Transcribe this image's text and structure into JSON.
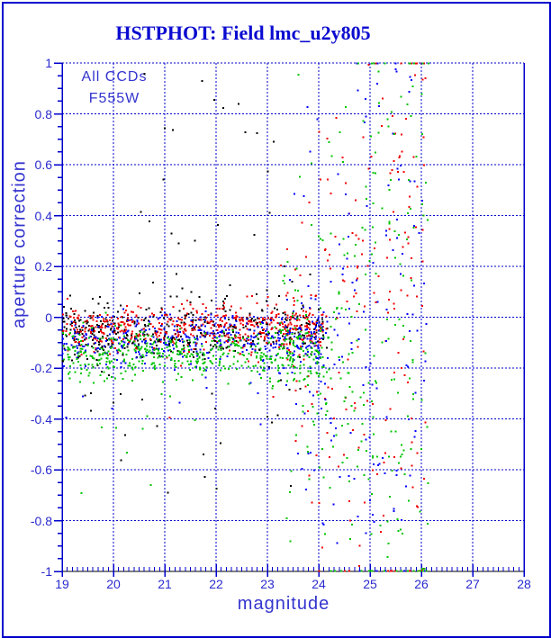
{
  "title": "HSTPHOT: Field lmc_u2y805",
  "legend": {
    "line1": "All CCDs",
    "line2": "F555W"
  },
  "chart_data": {
    "type": "scatter",
    "title": "HSTPHOT: Field lmc_u2y805",
    "annotations": [
      "All CCDs",
      "F555W"
    ],
    "xlabel": "magnitude",
    "ylabel": "aperture correction",
    "xlim": [
      19,
      28
    ],
    "ylim": [
      -1,
      1
    ],
    "x_major_ticks": [
      19,
      20,
      21,
      22,
      23,
      24,
      25,
      26,
      27,
      28
    ],
    "x_tick_labels": [
      "19",
      "20",
      "21",
      "22",
      "23",
      "24",
      "25",
      "26",
      "27",
      "28"
    ],
    "x_minor_step": 0.1,
    "y_major_ticks": [
      1,
      0.8,
      0.6,
      0.4,
      0.2,
      0,
      -0.2,
      -0.4,
      -0.6,
      -0.8,
      -1
    ],
    "y_tick_labels": [
      "1",
      "0.8",
      "0.6",
      "0.4",
      "0.2",
      "0",
      "-0.2",
      "-0.4",
      "-0.6",
      "-0.8",
      "-1"
    ],
    "y_minor_step": 0.05,
    "grid": "dotted blue at every major tick, top frame dashed",
    "colors": {
      "frame": "#0000cc",
      "grid": "#0000cc",
      "axis_bottom": "#000000",
      "text": "#2a2acf",
      "title": "#0b0bd0"
    },
    "series": [
      {
        "name": "ccd-black",
        "color": "#000000",
        "marker": "2px square",
        "seed": 11,
        "summary": "dense band mag 19-24.2 near -0.05; sparse outliers +0.1..+0.95 and -0.25..-0.72",
        "components": [
          {
            "kind": "band",
            "n": 430,
            "xmin": 19.0,
            "xmax": 24.2,
            "xpow": 1.1,
            "ymean": -0.055,
            "ysigma": 0.05,
            "tailFrac": 0.06,
            "tailScale": 0.12
          },
          {
            "kind": "box",
            "n": 36,
            "xmin": 20.3,
            "xmax": 24.0,
            "ymin": 0.06,
            "ymax": 0.97,
            "ypow": 1.7
          },
          {
            "kind": "box",
            "n": 20,
            "xmin": 19.3,
            "xmax": 23.8,
            "ymin": -0.72,
            "ymax": -0.25,
            "ypow": 1.0
          }
        ]
      },
      {
        "name": "ccd-red",
        "color": "#f00000",
        "marker": "2px square",
        "seed": 22,
        "summary": "band mag 19-24.1 near -0.04; fan mag 23.2-26.1 spreading to ±1",
        "components": [
          {
            "kind": "band",
            "n": 520,
            "xmin": 19.0,
            "xmax": 24.1,
            "xpow": 1.0,
            "ymean": -0.04,
            "ysigma": 0.042,
            "tailFrac": 0.05,
            "tailScale": 0.1
          },
          {
            "kind": "fan",
            "n": 205,
            "xstart": 23.2,
            "xspan": 2.9,
            "xpow": 0.85,
            "ycenter": -0.03,
            "sigma0": 0.1,
            "slope": 0.3,
            "extremeFrac": 0.18
          },
          {
            "kind": "box",
            "n": 6,
            "xmin": 25.2,
            "xmax": 25.9,
            "ymin": 0.3,
            "ymax": 0.8,
            "ypow": 1.0
          }
        ]
      },
      {
        "name": "ccd-blue",
        "color": "#0000ff",
        "marker": "2px square",
        "seed": 33,
        "summary": "band mag 19-24.1 near -0.085; fan mag 23.3-26.1",
        "components": [
          {
            "kind": "band",
            "n": 400,
            "xmin": 19.0,
            "xmax": 24.1,
            "xpow": 1.0,
            "ymean": -0.085,
            "ysigma": 0.048,
            "tailFrac": 0.06,
            "tailScale": 0.12
          },
          {
            "kind": "fan",
            "n": 170,
            "xstart": 23.3,
            "xspan": 2.8,
            "xpow": 0.85,
            "ycenter": -0.05,
            "sigma0": 0.1,
            "slope": 0.3,
            "extremeFrac": 0.18
          }
        ]
      },
      {
        "name": "ccd-green",
        "color": "#00c400",
        "marker": "2px square",
        "seed": 44,
        "summary": "band mag 19-24.1 near -0.145 (lowest stripe); heavy fan mag 23.2-26.15",
        "components": [
          {
            "kind": "band",
            "n": 500,
            "xmin": 19.0,
            "xmax": 24.1,
            "xpow": 1.0,
            "ymean": -0.145,
            "ysigma": 0.05,
            "tailFrac": 0.08,
            "tailScale": 0.15
          },
          {
            "kind": "fan",
            "n": 265,
            "xstart": 23.2,
            "xspan": 2.95,
            "xpow": 0.8,
            "ycenter": -0.12,
            "sigma0": 0.12,
            "slope": 0.3,
            "extremeFrac": 0.2
          }
        ]
      }
    ]
  }
}
